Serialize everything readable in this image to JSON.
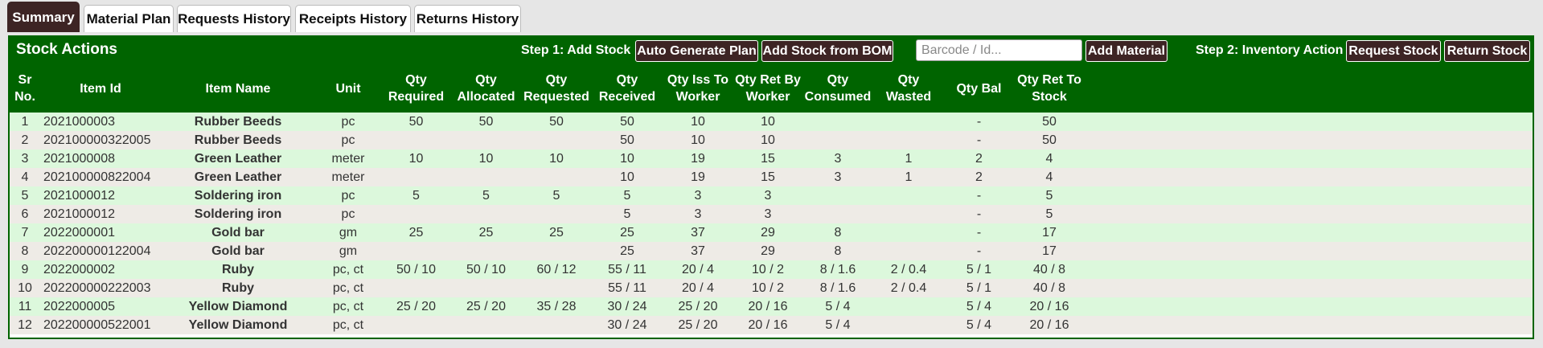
{
  "tabs": [
    "Summary",
    "Material Plan",
    "Requests History",
    "Receipts History",
    "Returns History"
  ],
  "panel": {
    "title": "Stock Actions",
    "step1_label": "Step 1: Add Stock",
    "step1_buttons": [
      "Auto Generate Plan",
      "Add Stock from BOM"
    ],
    "barcode_placeholder": "Barcode / Id...",
    "add_material_button": "Add Material",
    "step2_label": "Step 2: Inventory Action",
    "step2_buttons": [
      "Request Stock",
      "Return Stock"
    ]
  },
  "table": {
    "headers": [
      "Sr No.",
      "Item Id",
      "Item Name",
      "Unit",
      "Qty Required",
      "Qty Allocated",
      "Qty Requested",
      "Qty Received",
      "Qty Iss To Worker",
      "Qty Ret By Worker",
      "Qty Consumed",
      "Qty Wasted",
      "Qty Bal",
      "Qty Ret To Stock"
    ],
    "rows": [
      [
        "1",
        "2021000003",
        "Rubber Beeds",
        "pc",
        "50",
        "50",
        "50",
        "50",
        "10",
        "10",
        null,
        null,
        "-",
        "50"
      ],
      [
        "2",
        "202100000322005",
        "Rubber Beeds",
        "pc",
        null,
        null,
        null,
        "50",
        "10",
        "10",
        null,
        null,
        "-",
        "50"
      ],
      [
        "3",
        "2021000008",
        "Green Leather",
        "meter",
        "10",
        "10",
        "10",
        "10",
        "19",
        "15",
        "3",
        "1",
        "2",
        "4"
      ],
      [
        "4",
        "202100000822004",
        "Green Leather",
        "meter",
        null,
        null,
        null,
        "10",
        "19",
        "15",
        "3",
        "1",
        "2",
        "4"
      ],
      [
        "5",
        "2021000012",
        "Soldering iron",
        "pc",
        "5",
        "5",
        "5",
        "5",
        "3",
        "3",
        null,
        null,
        "-",
        "5"
      ],
      [
        "6",
        "2021000012",
        "Soldering iron",
        "pc",
        null,
        null,
        null,
        "5",
        "3",
        "3",
        null,
        null,
        "-",
        "5"
      ],
      [
        "7",
        "2022000001",
        "Gold bar",
        "gm",
        "25",
        "25",
        "25",
        "25",
        "37",
        "29",
        "8",
        null,
        "-",
        "17"
      ],
      [
        "8",
        "202200000122004",
        "Gold bar",
        "gm",
        null,
        null,
        null,
        "25",
        "37",
        "29",
        "8",
        null,
        "-",
        "17"
      ],
      [
        "9",
        "2022000002",
        "Ruby",
        "pc, ct",
        "50 / 10",
        "50 / 10",
        "60 / 12",
        "55 / 11",
        "20 / 4",
        "10 / 2",
        "8 / 1.6",
        "2 / 0.4",
        "5 / 1",
        "40 / 8"
      ],
      [
        "10",
        "202200000222003",
        "Ruby",
        "pc, ct",
        null,
        null,
        null,
        "55 / 11",
        "20 / 4",
        "10 / 2",
        "8 / 1.6",
        "2 / 0.4",
        "5 / 1",
        "40 / 8"
      ],
      [
        "11",
        "2022000005",
        "Yellow Diamond",
        "pc, ct",
        "25 / 20",
        "25 / 20",
        "35 / 28",
        "30 / 24",
        "25 / 20",
        "20 / 16",
        "5 / 4",
        null,
        "5 / 4",
        "20 / 16"
      ],
      [
        "12",
        "202200000522001",
        "Yellow Diamond",
        "pc, ct",
        null,
        null,
        null,
        "30 / 24",
        "25 / 20",
        "20 / 16",
        "5 / 4",
        null,
        "5 / 4",
        "20 / 16"
      ]
    ]
  }
}
